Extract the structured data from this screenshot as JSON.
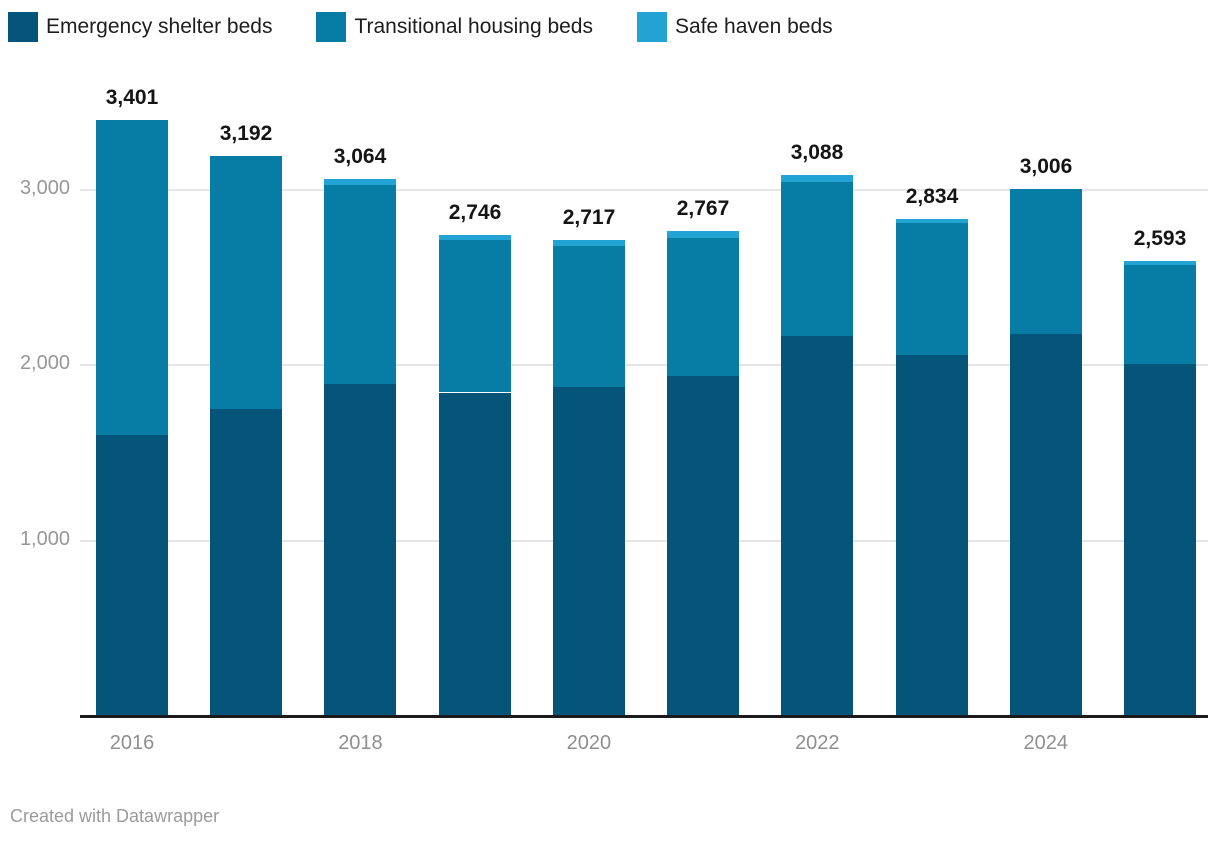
{
  "legend": {
    "items": [
      {
        "label": "Emergency shelter beds",
        "color": "#05547a"
      },
      {
        "label": "Transitional housing beds",
        "color": "#077ca5"
      },
      {
        "label": "Safe haven beds",
        "color": "#22a3d4"
      }
    ]
  },
  "footer": {
    "credit": "Created with Datawrapper"
  },
  "chart_data": {
    "type": "bar",
    "stacked": true,
    "title": "",
    "xlabel": "",
    "ylabel": "",
    "categories": [
      "2016",
      "2017",
      "2018",
      "2019",
      "2020",
      "2021",
      "2022",
      "2023",
      "2024",
      "2025"
    ],
    "series": [
      {
        "name": "Emergency shelter beds",
        "color": "#05547a",
        "values": [
          1605,
          1750,
          1895,
          1845,
          1878,
          1940,
          2165,
          2060,
          2180,
          2005
        ]
      },
      {
        "name": "Transitional housing beds",
        "color": "#077ca5",
        "values": [
          1796,
          1442,
          1135,
          867,
          805,
          789,
          878,
          751,
          826,
          565
        ]
      },
      {
        "name": "Safe haven beds",
        "color": "#22a3d4",
        "values": [
          0,
          0,
          34,
          34,
          34,
          38,
          45,
          23,
          0,
          23
        ]
      }
    ],
    "totals": [
      3401,
      3192,
      3064,
      2746,
      2717,
      2767,
      3088,
      2834,
      3006,
      2593
    ],
    "total_labels": [
      "3,401",
      "3,192",
      "3,064",
      "2,746",
      "2,717",
      "2,767",
      "3,088",
      "2,834",
      "3,006",
      "2,593"
    ],
    "y_ticks": [
      {
        "value": 1000,
        "label": "1,000"
      },
      {
        "value": 2000,
        "label": "2,000"
      },
      {
        "value": 3000,
        "label": "3,000"
      }
    ],
    "x_tick_labels": [
      "2016",
      "2018",
      "2020",
      "2022",
      "2024"
    ],
    "ylim": [
      0,
      3600
    ],
    "grid": true,
    "legend_position": "top"
  }
}
